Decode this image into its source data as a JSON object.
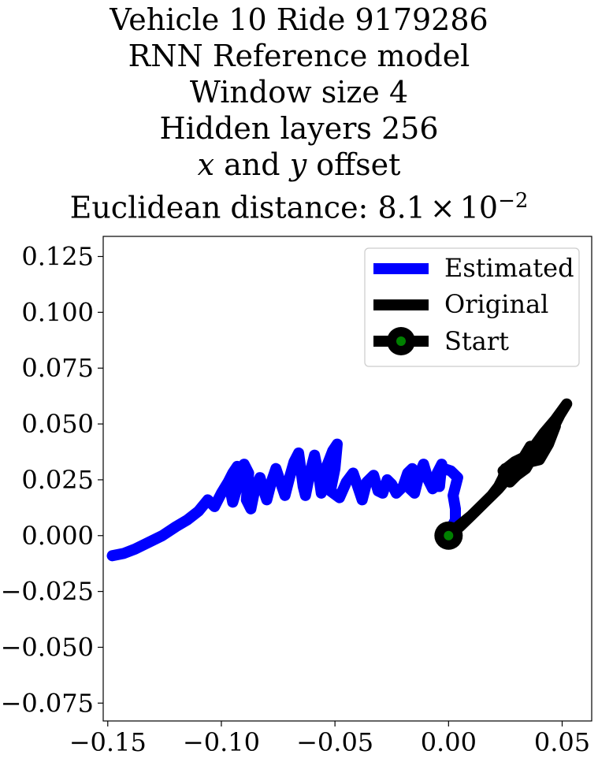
{
  "chart_data": {
    "type": "line",
    "title_lines": [
      "Vehicle 10 Ride 9179286",
      "RNN Reference model",
      "Window size 4",
      "Hidden layers 256",
      "x and y offset",
      "Euclidean distance: 8.1 × 10−2"
    ],
    "title_detail": {
      "offset_x": "x",
      "offset_and": " and ",
      "offset_y": "y",
      "offset_rest": " offset",
      "distance_prefix": "Euclidean distance: ",
      "distance_mantissa": "8.1",
      "distance_times": "×",
      "distance_base": "10",
      "distance_exponent": "−2"
    },
    "xlabel": "",
    "ylabel": "",
    "xlim": [
      -0.152,
      0.063
    ],
    "ylim": [
      -0.083,
      0.134
    ],
    "x_ticks": [
      -0.15,
      -0.1,
      -0.05,
      0.0,
      0.05
    ],
    "x_tick_labels": [
      "−0.15",
      "−0.10",
      "−0.05",
      "0.00",
      "0.05"
    ],
    "y_ticks": [
      0.125,
      0.1,
      0.075,
      0.05,
      0.025,
      0.0,
      -0.025,
      -0.05,
      -0.075
    ],
    "y_tick_labels": [
      "0.125",
      "0.100",
      "0.075",
      "0.050",
      "0.025",
      "0.000",
      "−0.025",
      "−0.050",
      "−0.075"
    ],
    "grid": false,
    "legend_position": "top-right",
    "legend": [
      "Estimated",
      "Original",
      "Start"
    ],
    "series": [
      {
        "name": "Estimated",
        "color": "#0000ff",
        "points": [
          [
            -0.148,
            -0.009
          ],
          [
            -0.143,
            -0.008
          ],
          [
            -0.138,
            -0.006
          ],
          [
            -0.132,
            -0.003
          ],
          [
            -0.126,
            0.0
          ],
          [
            -0.12,
            0.004
          ],
          [
            -0.115,
            0.007
          ],
          [
            -0.11,
            0.011
          ],
          [
            -0.106,
            0.016
          ],
          [
            -0.103,
            0.013
          ],
          [
            -0.1,
            0.019
          ],
          [
            -0.097,
            0.024
          ],
          [
            -0.095,
            0.028
          ],
          [
            -0.093,
            0.031
          ],
          [
            -0.096,
            0.02
          ],
          [
            -0.095,
            0.015
          ],
          [
            -0.092,
            0.025
          ],
          [
            -0.09,
            0.032
          ],
          [
            -0.088,
            0.028
          ],
          [
            -0.089,
            0.016
          ],
          [
            -0.087,
            0.012
          ],
          [
            -0.085,
            0.022
          ],
          [
            -0.083,
            0.026
          ],
          [
            -0.081,
            0.019
          ],
          [
            -0.08,
            0.016
          ],
          [
            -0.078,
            0.024
          ],
          [
            -0.076,
            0.03
          ],
          [
            -0.074,
            0.024
          ],
          [
            -0.072,
            0.018
          ],
          [
            -0.07,
            0.026
          ],
          [
            -0.068,
            0.033
          ],
          [
            -0.066,
            0.037
          ],
          [
            -0.064,
            0.022
          ],
          [
            -0.063,
            0.018
          ],
          [
            -0.061,
            0.028
          ],
          [
            -0.059,
            0.036
          ],
          [
            -0.057,
            0.026
          ],
          [
            -0.056,
            0.019
          ],
          [
            -0.054,
            0.03
          ],
          [
            -0.051,
            0.038
          ],
          [
            -0.049,
            0.041
          ],
          [
            -0.05,
            0.03
          ],
          [
            -0.052,
            0.02
          ],
          [
            -0.048,
            0.017
          ],
          [
            -0.045,
            0.024
          ],
          [
            -0.042,
            0.028
          ],
          [
            -0.04,
            0.022
          ],
          [
            -0.038,
            0.016
          ],
          [
            -0.036,
            0.024
          ],
          [
            -0.033,
            0.027
          ],
          [
            -0.031,
            0.02
          ],
          [
            -0.029,
            0.019
          ],
          [
            -0.027,
            0.025
          ],
          [
            -0.025,
            0.023
          ],
          [
            -0.023,
            0.019
          ],
          [
            -0.02,
            0.022
          ],
          [
            -0.018,
            0.028
          ],
          [
            -0.016,
            0.03
          ],
          [
            -0.017,
            0.021
          ],
          [
            -0.015,
            0.019
          ],
          [
            -0.013,
            0.027
          ],
          [
            -0.011,
            0.032
          ],
          [
            -0.009,
            0.025
          ],
          [
            -0.007,
            0.021
          ],
          [
            -0.005,
            0.028
          ],
          [
            -0.003,
            0.032
          ],
          [
            -0.004,
            0.022
          ],
          [
            -0.006,
            0.022
          ],
          [
            -0.004,
            0.027
          ],
          [
            -0.002,
            0.03
          ],
          [
            0.001,
            0.029
          ],
          [
            0.004,
            0.026
          ],
          [
            0.002,
            0.018
          ],
          [
            0.003,
            0.012
          ],
          [
            0.003,
            0.007
          ],
          [
            0.001,
            0.003
          ],
          [
            0.0,
            0.0
          ]
        ]
      },
      {
        "name": "Original",
        "color": "#000000",
        "points": [
          [
            0.0,
            0.0
          ],
          [
            0.005,
            0.004
          ],
          [
            0.01,
            0.009
          ],
          [
            0.015,
            0.014
          ],
          [
            0.019,
            0.018
          ],
          [
            0.022,
            0.022
          ],
          [
            0.024,
            0.026
          ],
          [
            0.025,
            0.03
          ],
          [
            0.028,
            0.031
          ],
          [
            0.031,
            0.028
          ],
          [
            0.027,
            0.024
          ],
          [
            0.024,
            0.029
          ],
          [
            0.029,
            0.033
          ],
          [
            0.033,
            0.035
          ],
          [
            0.036,
            0.04
          ],
          [
            0.033,
            0.032
          ],
          [
            0.03,
            0.027
          ],
          [
            0.034,
            0.03
          ],
          [
            0.038,
            0.037
          ],
          [
            0.04,
            0.043
          ],
          [
            0.042,
            0.045
          ],
          [
            0.039,
            0.038
          ],
          [
            0.036,
            0.033
          ],
          [
            0.04,
            0.034
          ],
          [
            0.044,
            0.041
          ],
          [
            0.047,
            0.049
          ],
          [
            0.044,
            0.045
          ],
          [
            0.047,
            0.05
          ],
          [
            0.049,
            0.054
          ],
          [
            0.052,
            0.059
          ],
          [
            0.047,
            0.052
          ],
          [
            0.042,
            0.046
          ],
          [
            0.037,
            0.039
          ],
          [
            0.032,
            0.033
          ],
          [
            0.027,
            0.027
          ],
          [
            0.022,
            0.021
          ],
          [
            0.016,
            0.015
          ],
          [
            0.01,
            0.009
          ],
          [
            0.004,
            0.004
          ],
          [
            0.0,
            0.0
          ]
        ]
      }
    ],
    "start_point": {
      "name": "Start",
      "x": 0.0,
      "y": 0.0,
      "marker_color": "#000000",
      "inner_color": "#008000"
    }
  }
}
